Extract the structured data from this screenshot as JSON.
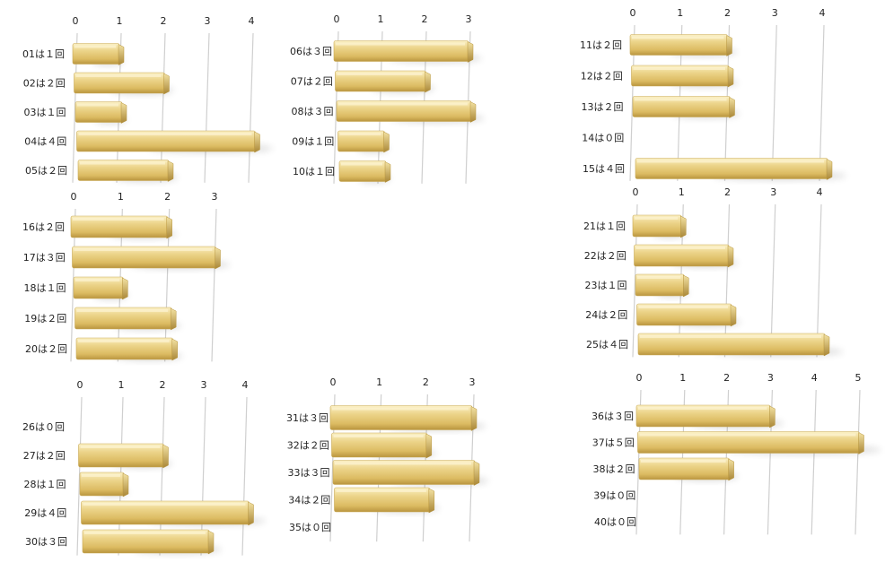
{
  "chart_data": [
    {
      "type": "bar",
      "orientation": "horizontal",
      "categories": [
        "01は１回",
        "02は２回",
        "03は１回",
        "04は４回",
        "05は２回"
      ],
      "values": [
        1,
        2,
        1,
        4,
        2
      ],
      "ticks": [
        0,
        1,
        2,
        3,
        4
      ],
      "xlim": [
        0,
        4
      ],
      "grid": true,
      "color": "#e8c877"
    },
    {
      "type": "bar",
      "orientation": "horizontal",
      "categories": [
        "06は３回",
        "07は２回",
        "08は３回",
        "09は１回",
        "10は１回"
      ],
      "values": [
        3,
        2,
        3,
        1,
        1
      ],
      "ticks": [
        0,
        1,
        2,
        3
      ],
      "xlim": [
        0,
        3
      ],
      "grid": true,
      "color": "#e8c877"
    },
    {
      "type": "bar",
      "orientation": "horizontal",
      "categories": [
        "11は２回",
        "12は２回",
        "13は２回",
        "14は０回",
        "15は４回"
      ],
      "values": [
        2,
        2,
        2,
        0,
        4
      ],
      "ticks": [
        0,
        1,
        2,
        3,
        4
      ],
      "xlim": [
        0,
        4
      ],
      "grid": true,
      "color": "#e8c877"
    },
    {
      "type": "bar",
      "orientation": "horizontal",
      "categories": [
        "16は２回",
        "17は３回",
        "18は１回",
        "19は２回",
        "20は２回"
      ],
      "values": [
        2,
        3,
        1,
        2,
        2
      ],
      "ticks": [
        0,
        1,
        2,
        3
      ],
      "xlim": [
        0,
        3
      ],
      "grid": true,
      "color": "#e8c877"
    },
    {
      "type": "bar",
      "orientation": "horizontal",
      "categories": [
        "21は１回",
        "22は２回",
        "23は１回",
        "24は２回",
        "25は４回"
      ],
      "values": [
        1,
        2,
        1,
        2,
        4
      ],
      "ticks": [
        0,
        1,
        2,
        3,
        4
      ],
      "xlim": [
        0,
        4
      ],
      "grid": true,
      "color": "#e8c877"
    },
    {
      "type": "bar",
      "orientation": "horizontal",
      "categories": [
        "26は０回",
        "27は２回",
        "28は１回",
        "29は４回",
        "30は３回"
      ],
      "values": [
        0,
        2,
        1,
        4,
        3
      ],
      "ticks": [
        0,
        1,
        2,
        3,
        4
      ],
      "xlim": [
        0,
        4
      ],
      "grid": true,
      "color": "#e8c877"
    },
    {
      "type": "bar",
      "orientation": "horizontal",
      "categories": [
        "31は３回",
        "32は２回",
        "33は３回",
        "34は２回",
        "35は０回"
      ],
      "values": [
        3,
        2,
        3,
        2,
        0
      ],
      "ticks": [
        0,
        1,
        2,
        3
      ],
      "xlim": [
        0,
        3
      ],
      "grid": true,
      "color": "#e8c877"
    },
    {
      "type": "bar",
      "orientation": "horizontal",
      "categories": [
        "36は３回",
        "37は５回",
        "38は２回",
        "39は０回",
        "40は０回"
      ],
      "values": [
        3,
        5,
        2,
        0,
        0
      ],
      "ticks": [
        0,
        1,
        2,
        3,
        4,
        5
      ],
      "xlim": [
        0,
        5
      ],
      "grid": true,
      "color": "#e8c877"
    }
  ]
}
